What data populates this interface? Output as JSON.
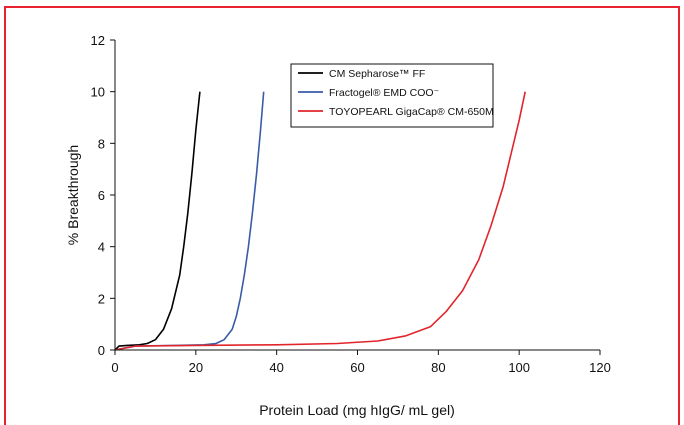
{
  "colors": {
    "frame": "#e8232f"
  },
  "chart_data": {
    "type": "line",
    "xlabel": "Protein Load (mg hIgG/ mL gel)",
    "ylabel": "% Breakthrough",
    "xlim": [
      0,
      120
    ],
    "ylim": [
      0,
      12
    ],
    "x_ticks": [
      "0",
      "20",
      "40",
      "60",
      "80",
      "100",
      "120"
    ],
    "y_ticks": [
      "0",
      "2",
      "4",
      "6",
      "8",
      "10",
      "12"
    ],
    "grid": false,
    "legend_position": "top-right",
    "series": [
      {
        "name": "CM Sepharose™ FF",
        "color": "#000000",
        "x": [
          0,
          1,
          3,
          6,
          8,
          10,
          12,
          14,
          16,
          17,
          18,
          19,
          20,
          21
        ],
        "y": [
          0,
          0.15,
          0.18,
          0.2,
          0.25,
          0.4,
          0.8,
          1.6,
          2.9,
          4.0,
          5.3,
          6.8,
          8.5,
          10.0
        ]
      },
      {
        "name": "Fractogel® EMD COO⁻",
        "color": "#3a5ba8",
        "x": [
          0,
          5,
          15,
          22,
          25,
          27,
          29,
          30,
          31,
          32,
          33,
          34,
          35,
          36,
          36.8
        ],
        "y": [
          0,
          0.15,
          0.18,
          0.2,
          0.25,
          0.4,
          0.8,
          1.3,
          2.0,
          2.9,
          4.0,
          5.3,
          6.8,
          8.5,
          10.0
        ]
      },
      {
        "name": "TOYOPEARL GigaCap® CM-650M",
        "color": "#e1262b",
        "x": [
          0,
          5,
          20,
          40,
          55,
          65,
          72,
          78,
          82,
          86,
          90,
          93,
          96,
          98,
          100,
          101.5
        ],
        "y": [
          0,
          0.15,
          0.18,
          0.2,
          0.25,
          0.35,
          0.55,
          0.9,
          1.5,
          2.3,
          3.5,
          4.8,
          6.3,
          7.6,
          8.9,
          10.0
        ]
      }
    ]
  }
}
